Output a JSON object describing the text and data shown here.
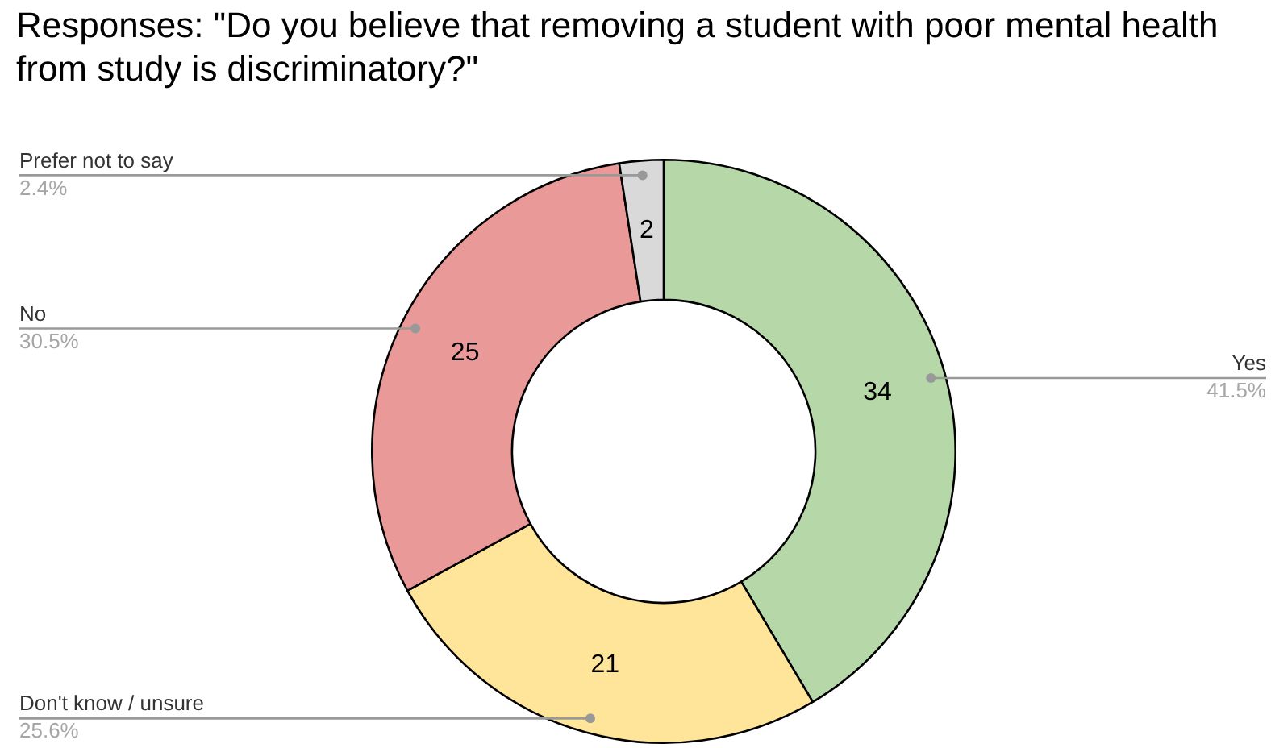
{
  "chart_data": {
    "type": "donut",
    "title": "Responses: \"Do you believe that removing a student with poor mental health from study is discriminatory?\"",
    "categories": [
      "Yes",
      "Don't know / unsure",
      "No",
      "Prefer not to say"
    ],
    "values": [
      34,
      21,
      25,
      2
    ],
    "colors": [
      "#b6d7a8",
      "#ffe599",
      "#ea9999",
      "#d9d9d9"
    ],
    "annotations": [
      "41.5%",
      "25.6%",
      "30.5%",
      "2.4%"
    ],
    "data_labels": true,
    "legend": false
  }
}
